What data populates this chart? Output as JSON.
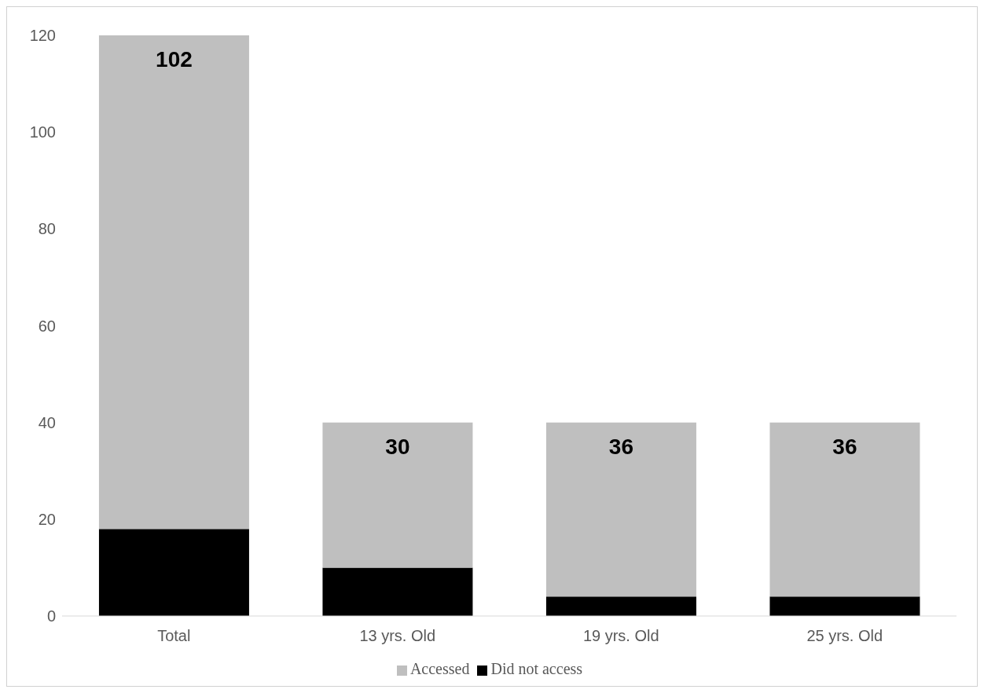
{
  "chart_data": {
    "type": "bar",
    "categories": [
      "Total",
      "13 yrs. Old",
      "19 yrs. Old",
      "25 yrs. Old"
    ],
    "stacked": true,
    "series": [
      {
        "name": "Did not access",
        "color": "#000000",
        "values": [
          18,
          10,
          4,
          4
        ]
      },
      {
        "name": "Accessed",
        "color": "#bfbfbf",
        "values": [
          102,
          30,
          36,
          36
        ],
        "value_labels": [
          "102",
          "30",
          "36",
          "36"
        ]
      }
    ],
    "ylim": [
      0,
      120
    ],
    "yticks": [
      0,
      20,
      40,
      60,
      80,
      100,
      120
    ],
    "legend": "bottom"
  }
}
